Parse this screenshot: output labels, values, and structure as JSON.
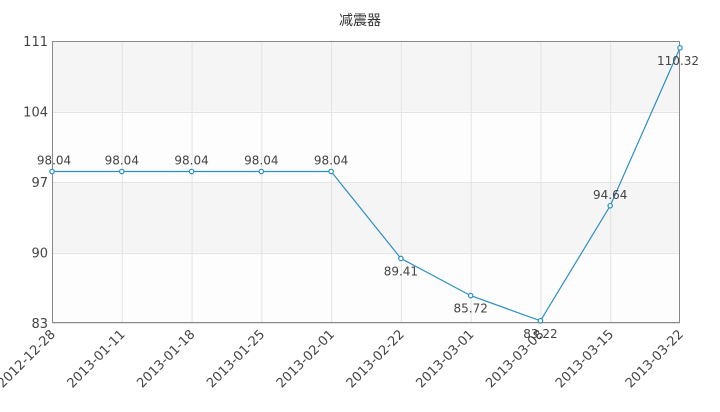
{
  "chart_data": {
    "type": "line",
    "title": "减震器",
    "x": [
      "2012-12-28",
      "2013-01-11",
      "2013-01-18",
      "2013-01-25",
      "2013-02-01",
      "2013-02-22",
      "2013-03-01",
      "2013-03-08",
      "2013-03-15",
      "2013-03-22"
    ],
    "series": [
      {
        "values": [
          98.04,
          98.04,
          98.04,
          98.04,
          98.04,
          89.41,
          85.72,
          83.22,
          94.64,
          110.32
        ],
        "labels": [
          "98.04",
          "98.04",
          "98.04",
          "98.04",
          "98.04",
          "89.41",
          "85.72",
          "83.22",
          "94.64",
          "110.32"
        ]
      }
    ],
    "yticks": [
      "83",
      "90",
      "97",
      "104",
      "111"
    ],
    "ylim": [
      83,
      111
    ],
    "grid": true,
    "colors": {
      "line": "#2a8fc3",
      "grid": "#e3e3e3",
      "axis": "#888888",
      "band": "#f5f5f5"
    }
  }
}
